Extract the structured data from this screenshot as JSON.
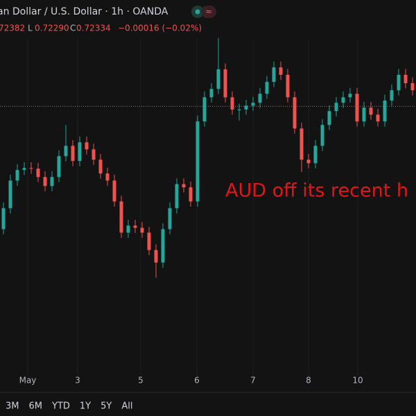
{
  "chart_data": {
    "type": "candlestick",
    "title": "an Dollar / U.S. Dollar · 1h · OANDA",
    "quote": {
      "o": "72382",
      "l_label": "L",
      "l": "0.72290",
      "c_label": "C",
      "c": "0.72334",
      "change": "−0.00016 (−0.02%)"
    },
    "annotation": "AUD off its recent h",
    "range_buttons": [
      "3M",
      "6M",
      "YTD",
      "1Y",
      "5Y",
      "All"
    ],
    "ylim": [
      0.715,
      0.726
    ],
    "xticks": [
      {
        "value": 3.5,
        "label": "May"
      },
      {
        "value": 10.7,
        "label": "3"
      },
      {
        "value": 19.8,
        "label": "5"
      },
      {
        "value": 27.9,
        "label": "6"
      },
      {
        "value": 36,
        "label": "7"
      },
      {
        "value": 44,
        "label": "8"
      },
      {
        "value": 51.1,
        "label": "10"
      }
    ],
    "up_color": "#26a69a",
    "down_color": "#ef5350",
    "open": [
      0.71952,
      0.72017,
      0.72103,
      0.72136,
      0.72142,
      0.7214,
      0.72114,
      0.72086,
      0.72114,
      0.72179,
      0.72211,
      0.72164,
      0.72222,
      0.722,
      0.72168,
      0.72125,
      0.72103,
      0.72038,
      0.71941,
      0.71963,
      0.71956,
      0.71941,
      0.71887,
      0.71848,
      0.71952,
      0.72017,
      0.72092,
      0.72082,
      0.72038,
      0.72287,
      0.72362,
      0.72388,
      0.72449,
      0.72362,
      0.72324,
      0.72324,
      0.72336,
      0.72345,
      0.72373,
      0.7241,
      0.72455,
      0.72432,
      0.72362,
      0.72265,
      0.72168,
      0.72157,
      0.72211,
      0.72276,
      0.72319,
      0.72345,
      0.72362,
      0.72373,
      0.72287,
      0.7233,
      0.72308,
      0.72287,
      0.72352,
      0.72384,
      0.72432,
      0.72406
    ],
    "high": [
      0.72035,
      0.72121,
      0.72154,
      0.7216,
      0.7216,
      0.72158,
      0.72132,
      0.72132,
      0.72197,
      0.72276,
      0.72229,
      0.7224,
      0.7224,
      0.72218,
      0.72186,
      0.72143,
      0.72121,
      0.72056,
      0.71981,
      0.71981,
      0.71974,
      0.71959,
      0.71905,
      0.7197,
      0.72035,
      0.7211,
      0.7211,
      0.721,
      0.72305,
      0.7238,
      0.72406,
      0.72546,
      0.72467,
      0.7238,
      0.72342,
      0.72354,
      0.72363,
      0.72391,
      0.72428,
      0.72473,
      0.72473,
      0.7245,
      0.7238,
      0.72283,
      0.72186,
      0.72229,
      0.72294,
      0.72337,
      0.72363,
      0.7238,
      0.72391,
      0.72391,
      0.72348,
      0.72348,
      0.72326,
      0.7237,
      0.72402,
      0.7245,
      0.7245,
      0.72424
    ],
    "low": [
      0.71936,
      0.72001,
      0.72087,
      0.7212,
      0.72124,
      0.72098,
      0.7207,
      0.7207,
      0.72098,
      0.72163,
      0.72148,
      0.72148,
      0.72184,
      0.72152,
      0.72109,
      0.72087,
      0.72022,
      0.71925,
      0.71925,
      0.7194,
      0.71925,
      0.71871,
      0.71801,
      0.71832,
      0.71936,
      0.72001,
      0.72066,
      0.72022,
      0.72022,
      0.72271,
      0.72346,
      0.72372,
      0.72346,
      0.72308,
      0.7229,
      0.72308,
      0.7232,
      0.72329,
      0.72357,
      0.72394,
      0.72416,
      0.72346,
      0.72249,
      0.7213,
      0.72141,
      0.72141,
      0.72195,
      0.7226,
      0.72303,
      0.72329,
      0.72346,
      0.72271,
      0.72271,
      0.72292,
      0.72271,
      0.72271,
      0.72336,
      0.72368,
      0.7239,
      0.72368
    ],
    "close": [
      0.72017,
      0.72103,
      0.72136,
      0.72142,
      0.7214,
      0.72114,
      0.72086,
      0.72114,
      0.72179,
      0.72211,
      0.72164,
      0.72222,
      0.722,
      0.72168,
      0.72125,
      0.72103,
      0.72038,
      0.71941,
      0.71963,
      0.71956,
      0.71941,
      0.71887,
      0.71848,
      0.71952,
      0.72017,
      0.72092,
      0.72082,
      0.72038,
      0.72287,
      0.72362,
      0.72388,
      0.72449,
      0.72362,
      0.72324,
      0.72324,
      0.72336,
      0.72345,
      0.72373,
      0.7241,
      0.72455,
      0.72432,
      0.72362,
      0.72265,
      0.72168,
      0.72157,
      0.72211,
      0.72276,
      0.72319,
      0.72345,
      0.72362,
      0.72373,
      0.72287,
      0.7233,
      0.72308,
      0.72287,
      0.72352,
      0.72384,
      0.72432,
      0.72406,
      0.72384
    ]
  }
}
